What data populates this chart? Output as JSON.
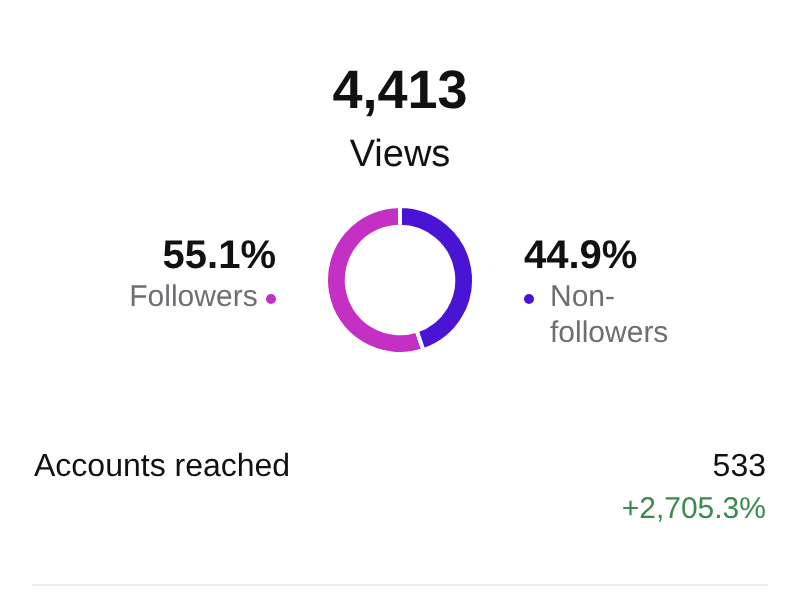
{
  "chart_data": {
    "type": "donut",
    "title": "4,413",
    "subtitle": "Views",
    "categories": [
      "Followers",
      "Non-followers"
    ],
    "values": [
      55.1,
      44.9
    ],
    "colors": [
      "#c42fc4",
      "#4a14d4"
    ],
    "value_labels": [
      "55.1%",
      "44.9%"
    ],
    "annotations": [
      "Accounts reached",
      "533",
      "+2,705.3%"
    ],
    "legend": "right"
  }
}
